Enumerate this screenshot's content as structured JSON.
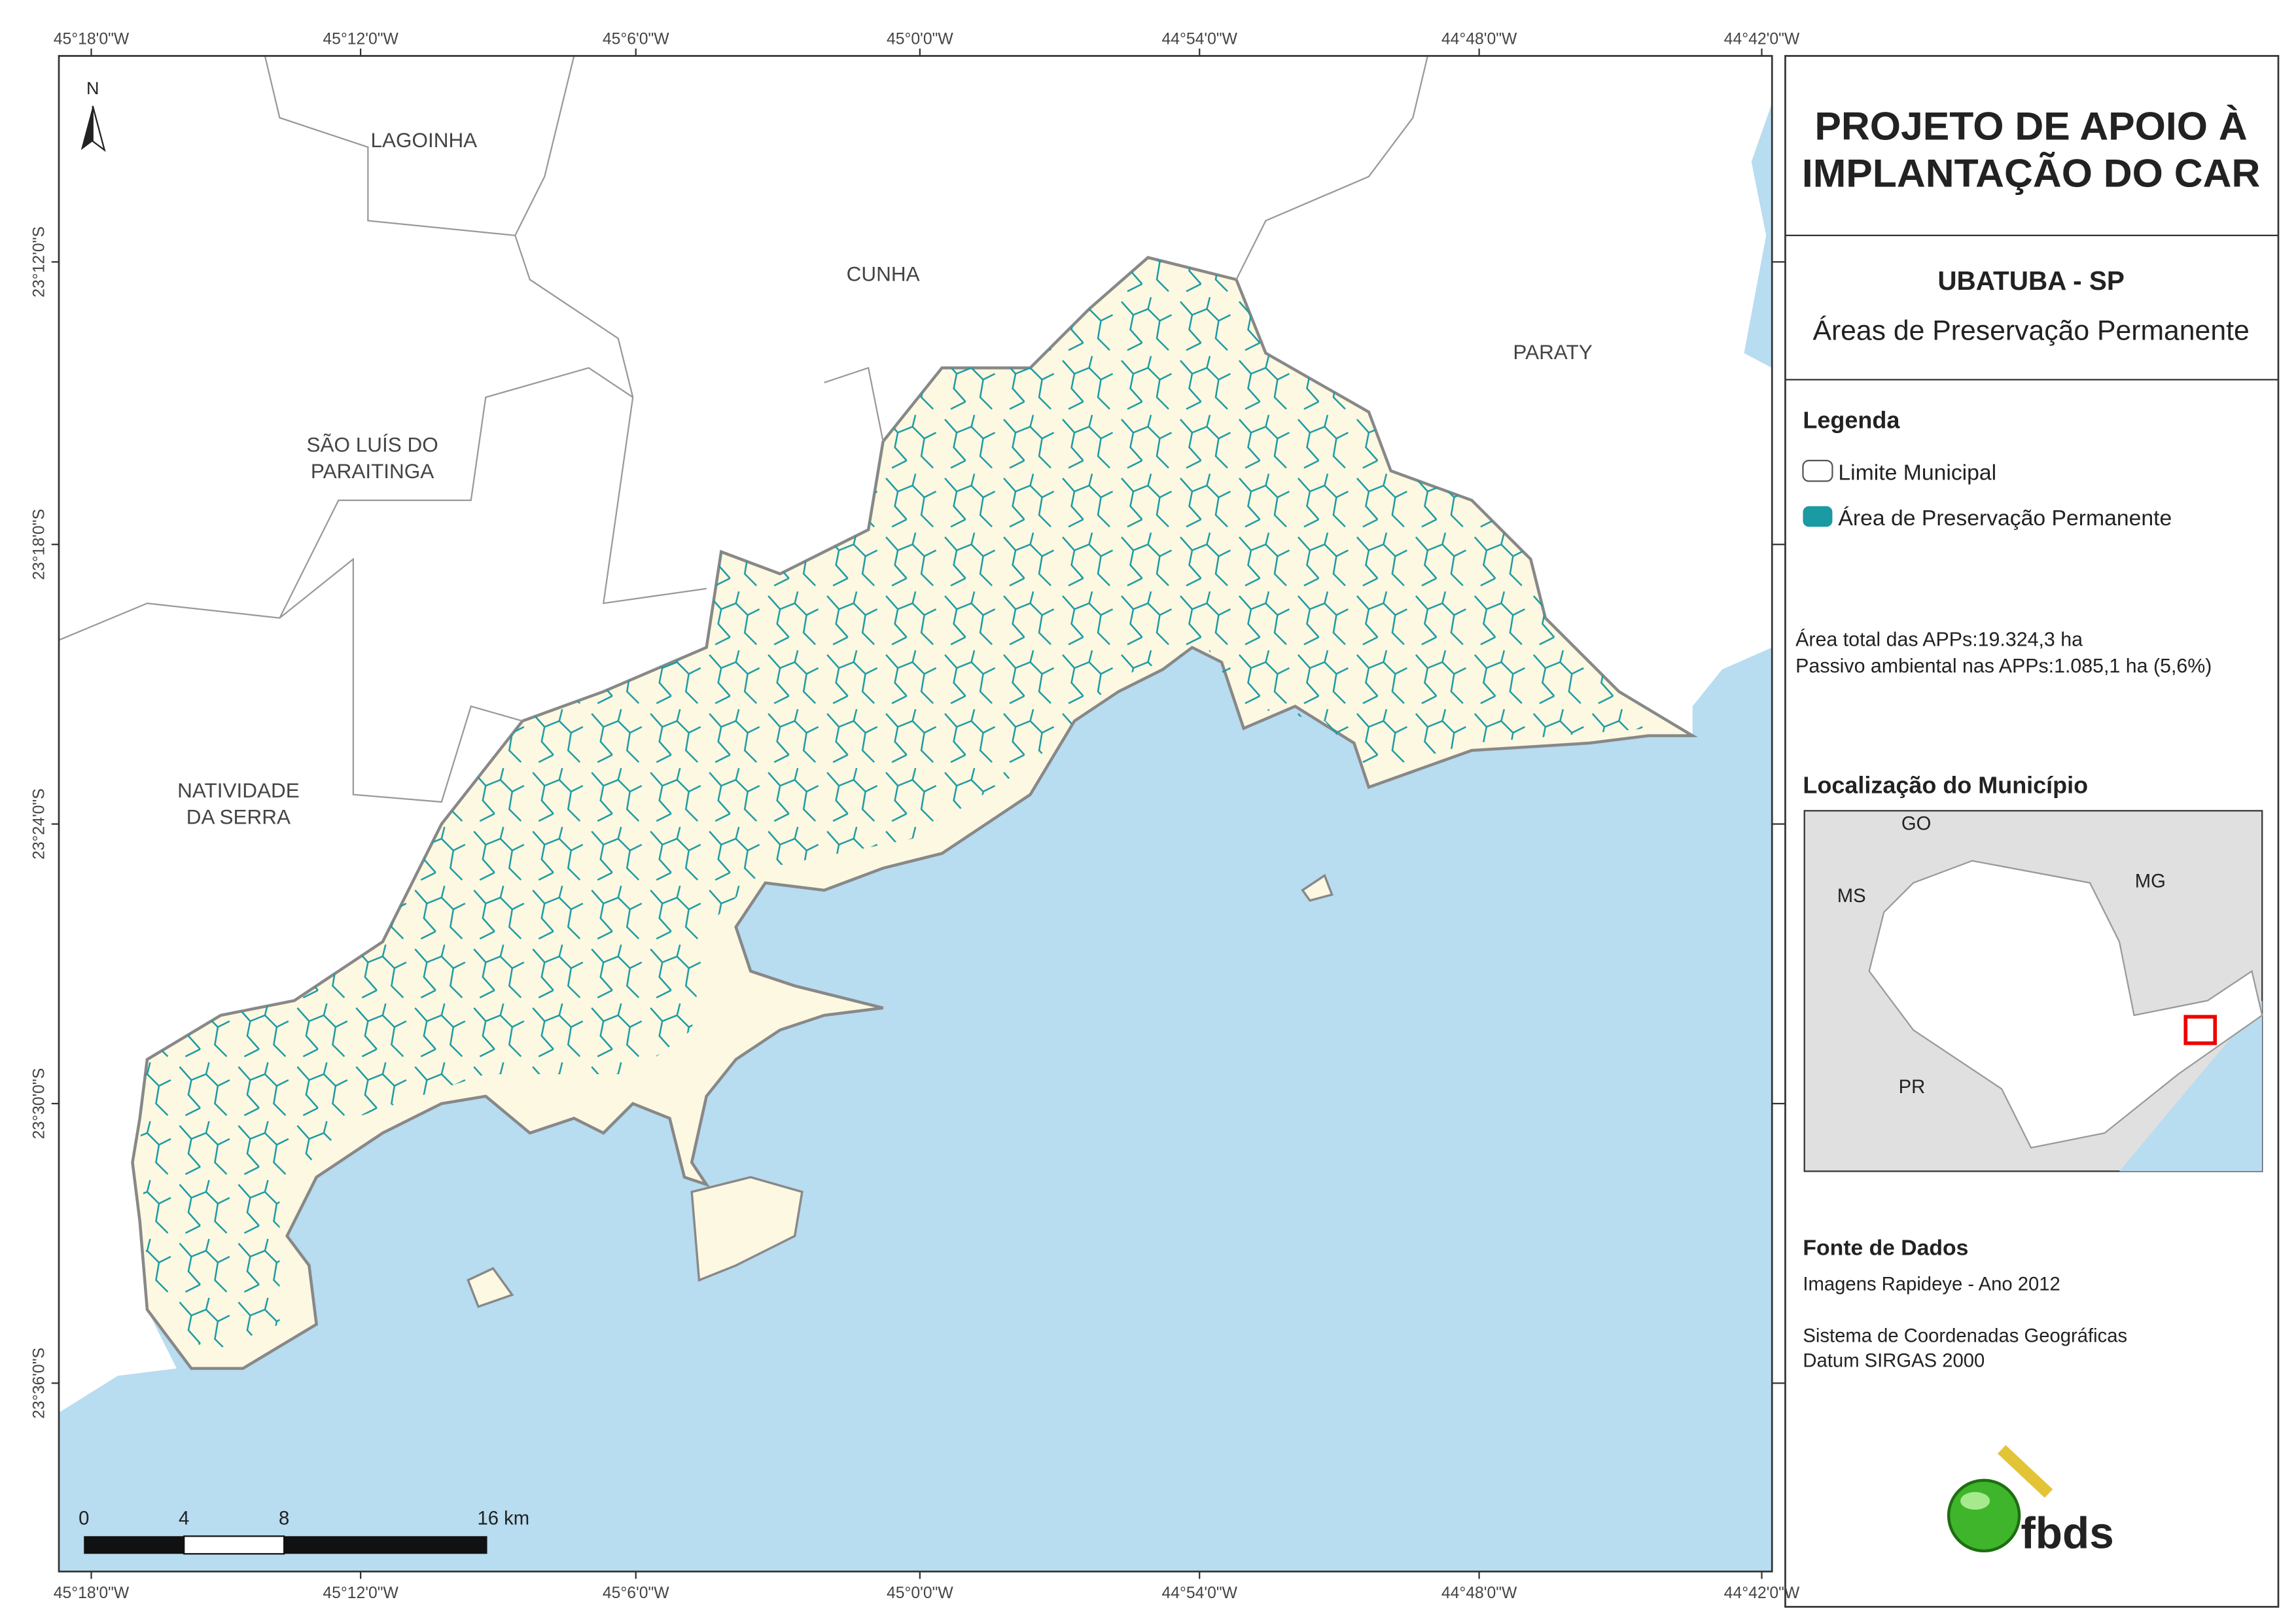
{
  "map": {
    "top_coordinate_labels": [
      "45°18'0\"W",
      "45°12'0\"W",
      "45°6'0\"W",
      "45°0'0\"W",
      "44°54'0\"W",
      "44°48'0\"W",
      "44°42'0\"W"
    ],
    "bottom_coordinate_labels": [
      "45°18'0\"W",
      "45°12'0\"W",
      "45°6'0\"W",
      "45°0'0\"W",
      "44°54'0\"W",
      "44°48'0\"W",
      "44°42'0\"W"
    ],
    "left_coordinate_labels": [
      "23°12'0\"S",
      "23°18'0\"S",
      "23°24'0\"S",
      "23°30'0\"S",
      "23°36'0\"S"
    ],
    "place_labels": [
      {
        "lines": [
          "LAGOINHA"
        ]
      },
      {
        "lines": [
          "CUNHA"
        ]
      },
      {
        "lines": [
          "PARATY"
        ]
      },
      {
        "lines": [
          "SÃO LUÍS DO",
          "PARAITINGA"
        ]
      },
      {
        "lines": [
          "NATIVIDADE",
          "DA SERRA"
        ]
      }
    ],
    "north_arrow": "N",
    "scale_bar_labels": [
      "0",
      "4",
      "8",
      "16 km"
    ]
  },
  "panel": {
    "title_lines": [
      "PROJETO DE APOIO À",
      "IMPLANTAÇÃO DO CAR"
    ],
    "municipality": "UBATUBA - SP",
    "theme": "Áreas de Preservação Permanente",
    "legend": {
      "title": "Legenda",
      "items": [
        "Limite Municipal",
        "Área de Preservação Permanente"
      ]
    },
    "stats": [
      "Área total das APPs:19.324,3 ha",
      "Passivo ambiental nas APPs:1.085,1 ha (5,6%)"
    ],
    "locator": {
      "title": "Localização do Município",
      "labels": [
        "GO",
        "MS",
        "MG",
        "PR"
      ]
    },
    "sources": {
      "title": "Fonte de Dados",
      "lines": [
        "Imagens Rapideye - Ano 2012",
        "Sistema de Coordenadas Geográficas",
        "Datum SIRGAS 2000"
      ]
    },
    "logo": "fbds"
  }
}
